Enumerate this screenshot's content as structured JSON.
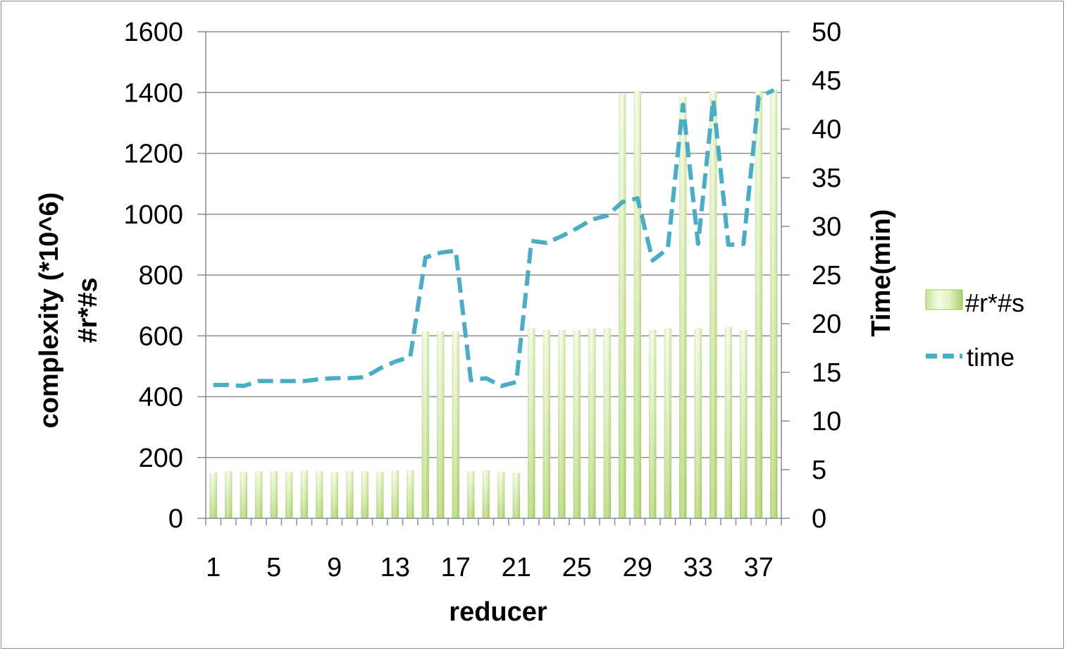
{
  "chart_data": {
    "type": "bar",
    "title": "",
    "xlabel": "reducer",
    "ylabel_lines": [
      "complexity (*10^6)",
      "#r*#s"
    ],
    "y2label": "Time(min)",
    "x": [
      1,
      2,
      3,
      4,
      5,
      6,
      7,
      8,
      9,
      10,
      11,
      12,
      13,
      14,
      15,
      16,
      17,
      18,
      19,
      20,
      21,
      22,
      23,
      24,
      25,
      26,
      27,
      28,
      29,
      30,
      31,
      32,
      33,
      34,
      35,
      36,
      37,
      38
    ],
    "x_tick_labels": [
      "1",
      "5",
      "9",
      "13",
      "17",
      "21",
      "25",
      "29",
      "33",
      "37"
    ],
    "ylim": [
      0,
      1600
    ],
    "y_ticks": [
      "0",
      "200",
      "400",
      "600",
      "800",
      "1000",
      "1200",
      "1400",
      "1600"
    ],
    "y2lim": [
      0,
      50
    ],
    "y2_ticks": [
      "0",
      "5",
      "10",
      "15",
      "20",
      "25",
      "30",
      "35",
      "40",
      "45",
      "50"
    ],
    "grid": true,
    "legend_position": "right",
    "series": [
      {
        "name": "#r*#s",
        "kind": "bar",
        "axis": "left",
        "color": "#9bc94f",
        "values": [
          150,
          155,
          152,
          155,
          155,
          153,
          157,
          155,
          152,
          155,
          155,
          153,
          157,
          158,
          615,
          615,
          615,
          155,
          158,
          152,
          150,
          625,
          620,
          620,
          620,
          625,
          625,
          1395,
          1405,
          620,
          625,
          1385,
          625,
          1405,
          630,
          620,
          1405,
          1410
        ]
      },
      {
        "name": "time",
        "kind": "line",
        "axis": "right",
        "color": "#4bacc6",
        "dash": "dashed",
        "values": [
          13.7,
          13.7,
          13.6,
          14.1,
          14.1,
          14.1,
          14.1,
          14.3,
          14.4,
          14.4,
          14.5,
          15.4,
          16.1,
          16.6,
          26.8,
          27.3,
          27.5,
          14.2,
          14.4,
          13.6,
          14.0,
          28.5,
          28.3,
          29.0,
          29.8,
          30.7,
          31.1,
          32.5,
          32.9,
          26.5,
          27.7,
          42.5,
          28.2,
          43.0,
          28.1,
          28.2,
          43.3,
          44.0
        ]
      }
    ]
  }
}
